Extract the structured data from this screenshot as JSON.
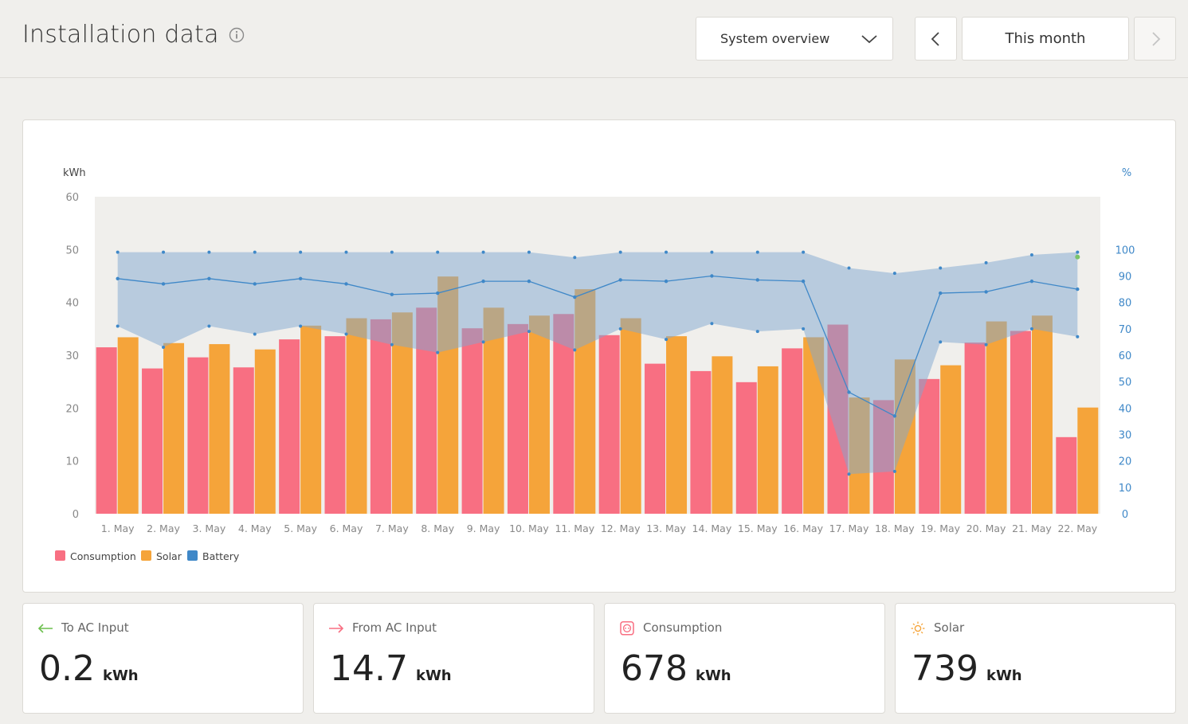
{
  "header": {
    "title": "Installation data",
    "view_select": "System overview",
    "period": "This month"
  },
  "icons": {
    "info": "info-icon",
    "dropdown": "chevron-down-icon",
    "prev": "chevron-left-icon",
    "next": "chevron-right-icon",
    "to_ac": "arrow-left-icon",
    "from_ac": "arrow-right-icon",
    "consumption": "socket-icon",
    "solar": "sun-icon"
  },
  "colors": {
    "consumption": "#f86f82",
    "solar": "#f5a43a",
    "battery": "#3f88c8",
    "battery_band": "#a9c5df",
    "to_ac": "#6cbf4d",
    "from_ac": "#f86f82"
  },
  "chart_data": {
    "type": "bar",
    "left_axis_label": "kWh",
    "right_axis_label": "%",
    "ylim": [
      0,
      60
    ],
    "y2lim": [
      0,
      120
    ],
    "yticks": [
      0,
      10,
      20,
      30,
      40,
      50,
      60
    ],
    "y2ticks": [
      0,
      10,
      20,
      30,
      40,
      50,
      60,
      70,
      80,
      90,
      100
    ],
    "grid": false,
    "legend_position": "bottom-left",
    "categories": [
      "1. May",
      "2. May",
      "3. May",
      "4. May",
      "5. May",
      "6. May",
      "7. May",
      "8. May",
      "9. May",
      "10. May",
      "11. May",
      "12. May",
      "13. May",
      "14. May",
      "15. May",
      "16. May",
      "17. May",
      "18. May",
      "19. May",
      "20. May",
      "21. May",
      "22. May"
    ],
    "series": [
      {
        "name": "Consumption",
        "type": "bar",
        "values": [
          31.5,
          27.5,
          29.6,
          27.7,
          33.0,
          33.6,
          36.8,
          39.0,
          35.1,
          35.9,
          37.8,
          33.8,
          28.4,
          27.0,
          24.9,
          31.3,
          35.8,
          21.5,
          25.5,
          32.4,
          34.6,
          14.5
        ]
      },
      {
        "name": "Solar",
        "type": "bar",
        "values": [
          33.4,
          32.3,
          32.1,
          31.1,
          35.6,
          37.0,
          38.1,
          44.9,
          39.0,
          37.5,
          42.5,
          37.0,
          33.6,
          29.8,
          27.9,
          33.4,
          22.0,
          29.2,
          28.1,
          36.4,
          37.5,
          20.1
        ]
      },
      {
        "name": "Battery",
        "type": "line",
        "axis": "right",
        "values": [
          89,
          87,
          89,
          87,
          89,
          87,
          83,
          83.5,
          88,
          88,
          82,
          88.5,
          88,
          90,
          88.5,
          88,
          46,
          37,
          83.5,
          84,
          88,
          85
        ]
      },
      {
        "name": "Battery max",
        "type": "band-upper",
        "axis": "right",
        "values": [
          99,
          99,
          99,
          99,
          99,
          99,
          99,
          99,
          99,
          99,
          97,
          99,
          99,
          99,
          99,
          99,
          93,
          91,
          93,
          95,
          98,
          99
        ]
      },
      {
        "name": "Battery min",
        "type": "band-lower",
        "axis": "right",
        "values": [
          71,
          63,
          71,
          68,
          71,
          68,
          64,
          61,
          65,
          69,
          62,
          70,
          66,
          72,
          69,
          70,
          15,
          16,
          65,
          64,
          70,
          67
        ]
      }
    ],
    "legend": [
      "Consumption",
      "Solar",
      "Battery"
    ]
  },
  "stats": [
    {
      "label": "To AC Input",
      "value": "0.2",
      "unit": "kWh"
    },
    {
      "label": "From AC Input",
      "value": "14.7",
      "unit": "kWh"
    },
    {
      "label": "Consumption",
      "value": "678",
      "unit": "kWh"
    },
    {
      "label": "Solar",
      "value": "739",
      "unit": "kWh"
    }
  ]
}
